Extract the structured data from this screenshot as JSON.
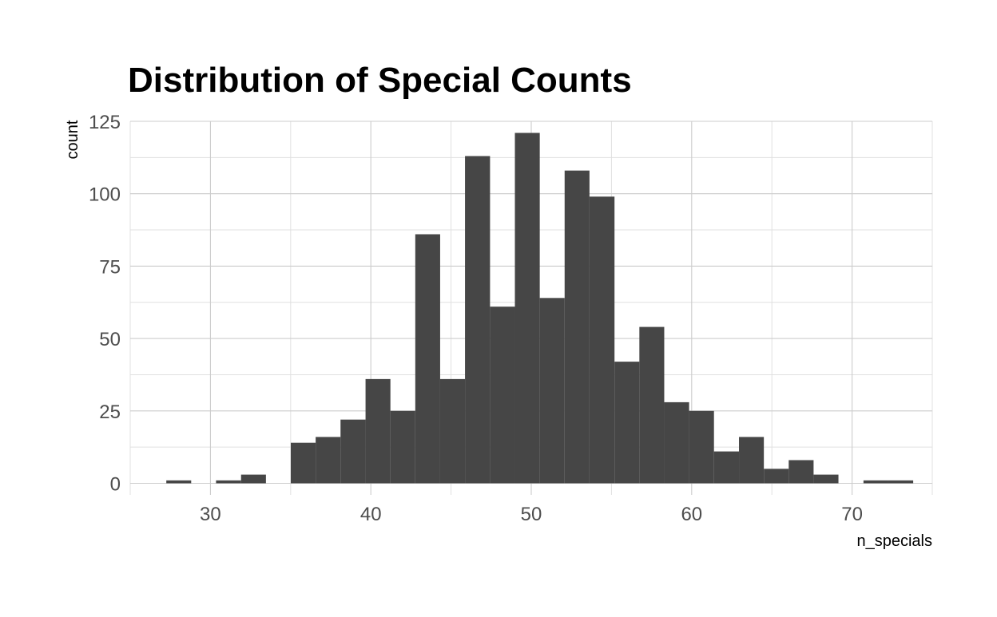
{
  "chart_data": {
    "type": "bar",
    "title": "Distribution of Special Counts",
    "xlabel": "n_specials",
    "ylabel": "count",
    "xlim": [
      25,
      75
    ],
    "ylim": [
      -4,
      125
    ],
    "x_ticks": [
      30,
      40,
      50,
      60,
      70
    ],
    "y_ticks": [
      0,
      25,
      50,
      75,
      100,
      125
    ],
    "grid": true,
    "bin_width": 1.5517,
    "bar_color": "#464646",
    "bins": [
      {
        "x_start": 27.25,
        "x_end": 28.8,
        "count": 1
      },
      {
        "x_start": 30.35,
        "x_end": 31.91,
        "count": 1
      },
      {
        "x_start": 31.91,
        "x_end": 33.46,
        "count": 3
      },
      {
        "x_start": 35.01,
        "x_end": 36.56,
        "count": 14
      },
      {
        "x_start": 36.56,
        "x_end": 38.11,
        "count": 16
      },
      {
        "x_start": 38.11,
        "x_end": 39.67,
        "count": 22
      },
      {
        "x_start": 39.67,
        "x_end": 41.22,
        "count": 36
      },
      {
        "x_start": 41.22,
        "x_end": 42.77,
        "count": 25
      },
      {
        "x_start": 42.77,
        "x_end": 44.32,
        "count": 86
      },
      {
        "x_start": 44.32,
        "x_end": 45.87,
        "count": 36
      },
      {
        "x_start": 45.87,
        "x_end": 47.43,
        "count": 113
      },
      {
        "x_start": 47.43,
        "x_end": 48.98,
        "count": 61
      },
      {
        "x_start": 48.98,
        "x_end": 50.53,
        "count": 121
      },
      {
        "x_start": 50.53,
        "x_end": 52.08,
        "count": 64
      },
      {
        "x_start": 52.08,
        "x_end": 53.63,
        "count": 108
      },
      {
        "x_start": 53.63,
        "x_end": 55.19,
        "count": 99
      },
      {
        "x_start": 55.19,
        "x_end": 56.74,
        "count": 42
      },
      {
        "x_start": 56.74,
        "x_end": 58.29,
        "count": 54
      },
      {
        "x_start": 58.29,
        "x_end": 59.84,
        "count": 28
      },
      {
        "x_start": 59.84,
        "x_end": 61.39,
        "count": 25
      },
      {
        "x_start": 61.39,
        "x_end": 62.95,
        "count": 11
      },
      {
        "x_start": 62.95,
        "x_end": 64.5,
        "count": 16
      },
      {
        "x_start": 64.5,
        "x_end": 66.05,
        "count": 5
      },
      {
        "x_start": 66.05,
        "x_end": 67.6,
        "count": 8
      },
      {
        "x_start": 67.6,
        "x_end": 69.15,
        "count": 3
      },
      {
        "x_start": 70.71,
        "x_end": 72.26,
        "count": 1
      },
      {
        "x_start": 72.26,
        "x_end": 73.81,
        "count": 1
      }
    ]
  }
}
